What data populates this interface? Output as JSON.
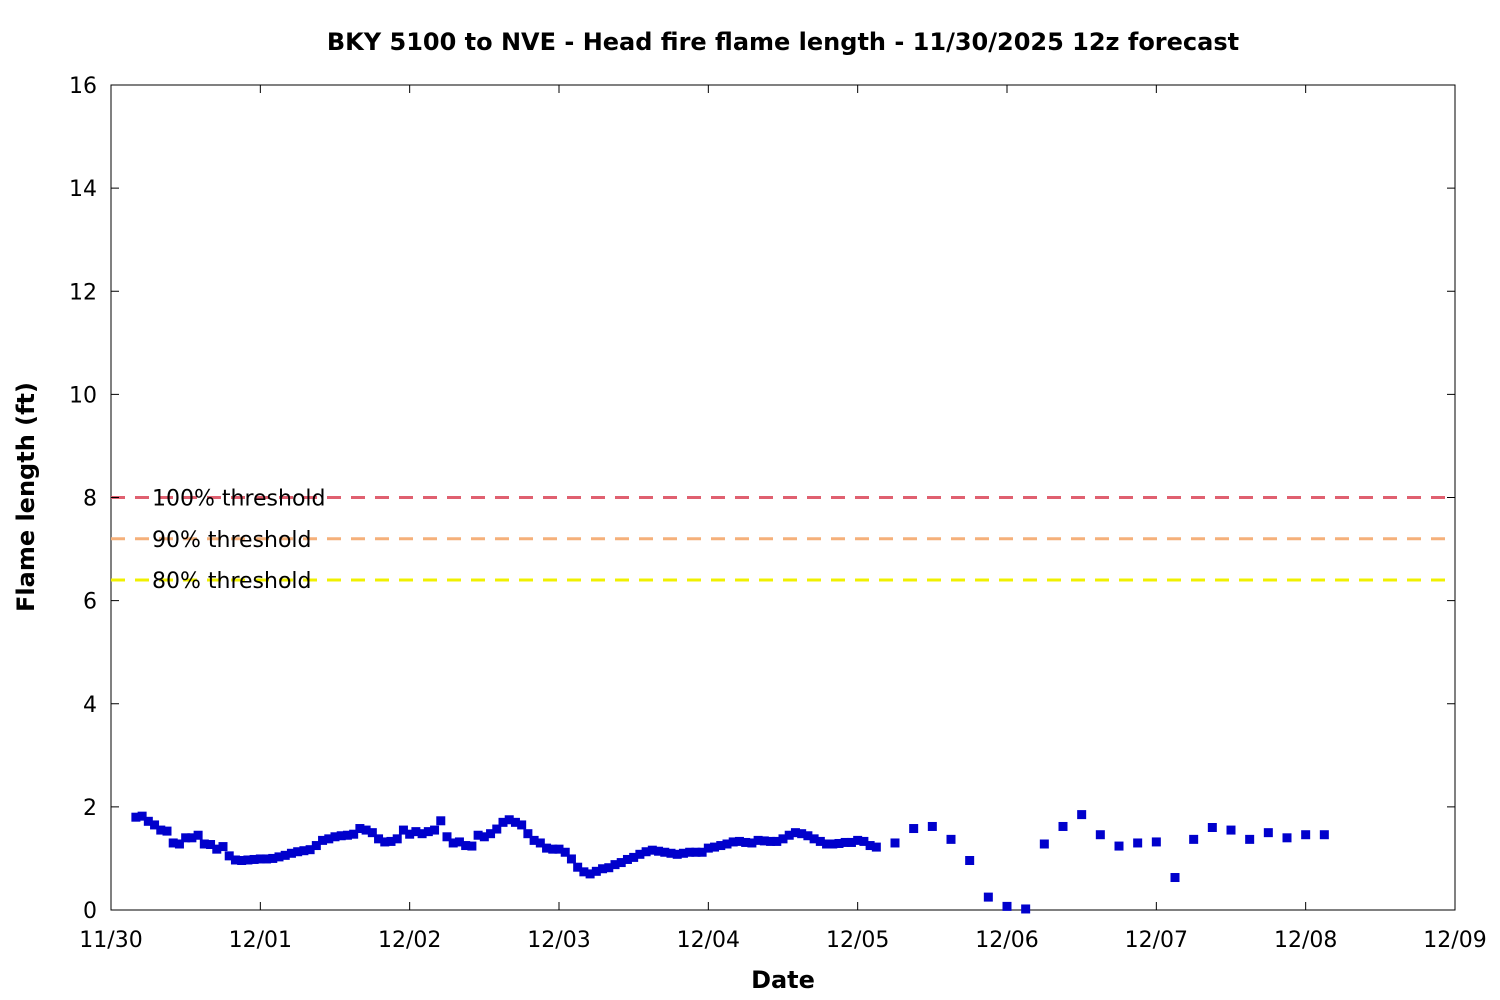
{
  "chart_data": {
    "type": "scatter",
    "title": "BKY 5100 to NVE - Head fire flame length - 11/30/2025 12z forecast",
    "xlabel": "Date",
    "ylabel": "Flame length (ft)",
    "xlim": [
      "11/30",
      "12/09"
    ],
    "ylim": [
      0,
      16
    ],
    "x_ticks": [
      "11/30",
      "12/01",
      "12/02",
      "12/03",
      "12/04",
      "12/05",
      "12/06",
      "12/07",
      "12/08",
      "12/09"
    ],
    "y_ticks": [
      "0",
      "2",
      "4",
      "6",
      "8",
      "10",
      "12",
      "14",
      "16"
    ],
    "grid": false,
    "marker_color": "#0000cc",
    "thresholds": [
      {
        "label": "100% threshold",
        "value": 8.0,
        "color": "#e06070"
      },
      {
        "label": "90% threshold",
        "value": 7.2,
        "color": "#f5b07a"
      },
      {
        "label": "80% threshold",
        "value": 6.4,
        "color": "#f0f000"
      }
    ],
    "series": [
      {
        "x": [
          "11/30 04:00",
          "11/30 05:00",
          "11/30 06:00",
          "11/30 07:00",
          "11/30 08:00",
          "11/30 09:00",
          "11/30 10:00",
          "11/30 11:00",
          "11/30 12:00",
          "11/30 13:00",
          "11/30 14:00",
          "11/30 15:00",
          "11/30 16:00",
          "11/30 17:00",
          "11/30 18:00",
          "11/30 19:00",
          "11/30 20:00",
          "11/30 21:00",
          "11/30 22:00",
          "11/30 23:00",
          "12/01 00:00",
          "12/01 01:00",
          "12/01 02:00",
          "12/01 03:00",
          "12/01 04:00",
          "12/01 05:00",
          "12/01 06:00",
          "12/01 07:00",
          "12/01 08:00",
          "12/01 09:00",
          "12/01 10:00",
          "12/01 11:00",
          "12/01 12:00",
          "12/01 13:00",
          "12/01 14:00",
          "12/01 15:00",
          "12/01 16:00",
          "12/01 17:00",
          "12/01 18:00",
          "12/01 19:00",
          "12/01 20:00",
          "12/01 21:00",
          "12/01 22:00",
          "12/01 23:00",
          "12/02 00:00",
          "12/02 01:00",
          "12/02 02:00",
          "12/02 03:00",
          "12/02 04:00",
          "12/02 05:00",
          "12/02 06:00",
          "12/02 07:00",
          "12/02 08:00",
          "12/02 09:00",
          "12/02 10:00",
          "12/02 11:00",
          "12/02 12:00",
          "12/02 13:00",
          "12/02 14:00",
          "12/02 15:00",
          "12/02 16:00",
          "12/02 17:00",
          "12/02 18:00",
          "12/02 19:00",
          "12/02 20:00",
          "12/02 21:00",
          "12/02 22:00",
          "12/02 23:00",
          "12/03 00:00",
          "12/03 01:00",
          "12/03 02:00",
          "12/03 03:00",
          "12/03 04:00",
          "12/03 05:00",
          "12/03 06:00",
          "12/03 07:00",
          "12/03 08:00",
          "12/03 09:00",
          "12/03 10:00",
          "12/03 11:00",
          "12/03 12:00",
          "12/03 13:00",
          "12/03 14:00",
          "12/03 15:00",
          "12/03 16:00",
          "12/03 17:00",
          "12/03 18:00",
          "12/03 19:00",
          "12/03 20:00",
          "12/03 21:00",
          "12/03 22:00",
          "12/03 23:00",
          "12/04 00:00",
          "12/04 01:00",
          "12/04 02:00",
          "12/04 03:00",
          "12/04 04:00",
          "12/04 05:00",
          "12/04 06:00",
          "12/04 07:00",
          "12/04 08:00",
          "12/04 09:00",
          "12/04 10:00",
          "12/04 11:00",
          "12/04 12:00",
          "12/04 13:00",
          "12/04 14:00",
          "12/04 15:00",
          "12/04 16:00",
          "12/04 17:00",
          "12/04 18:00",
          "12/04 19:00",
          "12/04 20:00",
          "12/04 21:00",
          "12/04 22:00",
          "12/04 23:00",
          "12/05 00:00",
          "12/05 01:00",
          "12/05 02:00",
          "12/05 03:00",
          "12/05 06:00",
          "12/05 09:00",
          "12/05 12:00",
          "12/05 15:00",
          "12/05 18:00",
          "12/05 21:00",
          "12/06 00:00",
          "12/06 03:00",
          "12/06 06:00",
          "12/06 09:00",
          "12/06 12:00",
          "12/06 15:00",
          "12/06 18:00",
          "12/06 21:00",
          "12/07 00:00",
          "12/07 03:00",
          "12/07 06:00",
          "12/07 09:00",
          "12/07 12:00",
          "12/07 15:00",
          "12/07 18:00",
          "12/07 21:00",
          "12/08 00:00",
          "12/08 03:00"
        ],
        "y": [
          1.8,
          1.82,
          1.72,
          1.65,
          1.55,
          1.53,
          1.3,
          1.28,
          1.4,
          1.4,
          1.45,
          1.28,
          1.27,
          1.18,
          1.23,
          1.05,
          0.97,
          0.96,
          0.97,
          0.98,
          0.99,
          0.99,
          1.0,
          1.03,
          1.06,
          1.1,
          1.13,
          1.15,
          1.17,
          1.25,
          1.35,
          1.38,
          1.42,
          1.44,
          1.45,
          1.47,
          1.58,
          1.55,
          1.5,
          1.38,
          1.32,
          1.33,
          1.38,
          1.55,
          1.47,
          1.52,
          1.48,
          1.52,
          1.55,
          1.73,
          1.42,
          1.3,
          1.32,
          1.25,
          1.24,
          1.45,
          1.42,
          1.48,
          1.57,
          1.7,
          1.75,
          1.7,
          1.65,
          1.48,
          1.35,
          1.3,
          1.2,
          1.18,
          1.18,
          1.12,
          0.99,
          0.83,
          0.74,
          0.7,
          0.75,
          0.8,
          0.82,
          0.88,
          0.92,
          0.98,
          1.02,
          1.08,
          1.13,
          1.16,
          1.14,
          1.12,
          1.1,
          1.08,
          1.1,
          1.12,
          1.12,
          1.12,
          1.2,
          1.22,
          1.25,
          1.28,
          1.32,
          1.33,
          1.31,
          1.3,
          1.35,
          1.34,
          1.33,
          1.33,
          1.38,
          1.45,
          1.5,
          1.48,
          1.44,
          1.38,
          1.33,
          1.28,
          1.28,
          1.29,
          1.31,
          1.31,
          1.35,
          1.33,
          1.25,
          1.22,
          1.3,
          1.58,
          1.62,
          1.37,
          0.96,
          0.25,
          0.07,
          0.02,
          1.28,
          1.62,
          1.85,
          1.46,
          1.24,
          1.3,
          1.32,
          0.63,
          1.37,
          1.6,
          1.55,
          1.37,
          1.5,
          1.4,
          1.46,
          1.46
        ]
      }
    ]
  }
}
